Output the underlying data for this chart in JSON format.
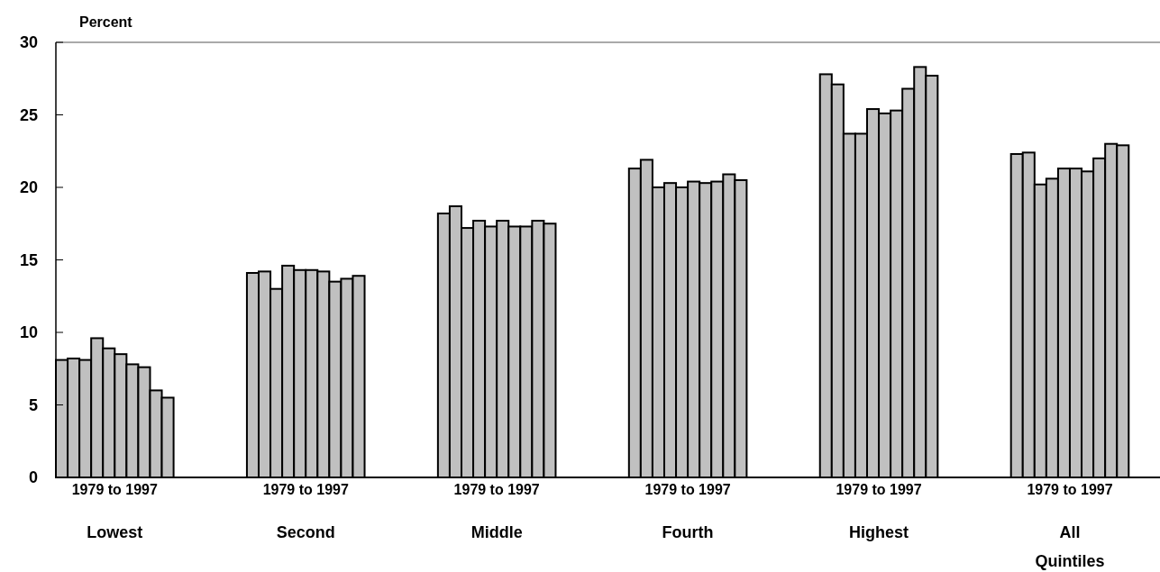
{
  "chart_data": {
    "type": "bar",
    "ylabel": "Percent",
    "categories": [
      "Lowest",
      "Second",
      "Middle",
      "Fourth",
      "Highest",
      "All Quintiles"
    ],
    "series": [
      {
        "color": "#c0c0c0",
        "values": [
          8.1,
          14.1,
          18.2,
          21.3,
          27.8,
          22.3
        ]
      },
      {
        "color": "#c0c0c0",
        "values": [
          8.2,
          14.2,
          18.7,
          21.9,
          27.1,
          22.4
        ]
      },
      {
        "color": "#c0c0c0",
        "values": [
          8.1,
          13.0,
          17.2,
          20.0,
          23.7,
          20.2
        ]
      },
      {
        "color": "#c0c0c0",
        "values": [
          9.6,
          14.6,
          17.7,
          20.3,
          23.7,
          20.6
        ]
      },
      {
        "color": "#c0c0c0",
        "values": [
          8.9,
          14.3,
          17.3,
          20.0,
          25.4,
          21.3
        ]
      },
      {
        "color": "#c0c0c0",
        "values": [
          8.5,
          14.3,
          17.7,
          20.4,
          25.1,
          21.3
        ]
      },
      {
        "color": "#c0c0c0",
        "values": [
          7.8,
          14.2,
          17.3,
          20.3,
          25.3,
          21.1
        ]
      },
      {
        "color": "#c0c0c0",
        "values": [
          7.6,
          13.5,
          17.3,
          20.4,
          26.8,
          22.0
        ]
      },
      {
        "color": "#c0c0c0",
        "values": [
          6.0,
          13.7,
          17.7,
          20.9,
          28.3,
          23.0
        ]
      },
      {
        "color": "#c0c0c0",
        "values": [
          5.5,
          13.9,
          17.5,
          20.5,
          27.7,
          22.9
        ]
      }
    ],
    "annotations": [
      "1979 to 1997",
      "1979 to 1997",
      "1979 to 1997",
      "1979 to 1997",
      "1979 to 1997",
      "1979 to 1997"
    ],
    "ylim": [
      0,
      30
    ],
    "yticks": [
      0,
      5,
      10,
      15,
      20,
      25,
      30
    ],
    "grid": false
  }
}
